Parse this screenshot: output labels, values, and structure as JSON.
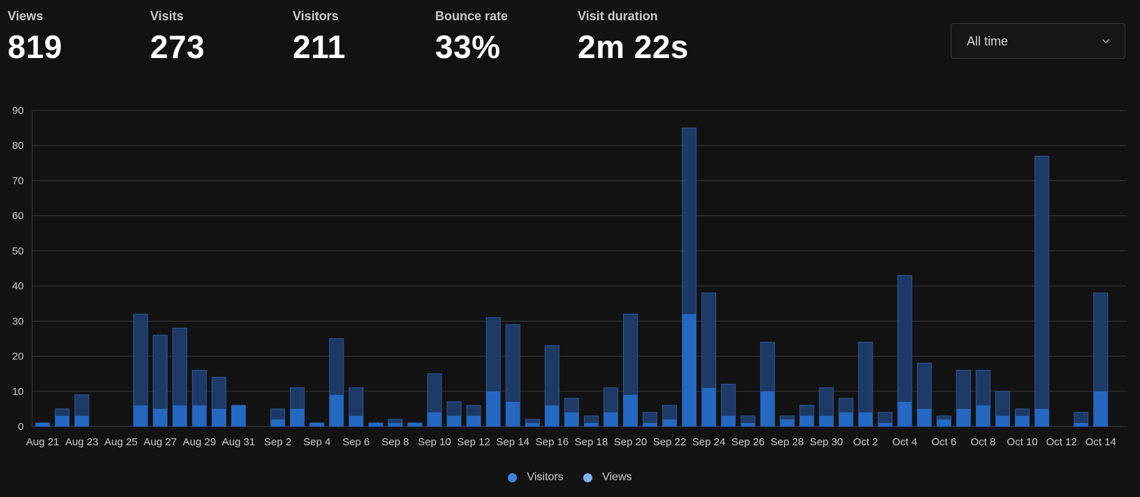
{
  "metrics": [
    {
      "label": "Views",
      "value": "819"
    },
    {
      "label": "Visits",
      "value": "273"
    },
    {
      "label": "Visitors",
      "value": "211"
    },
    {
      "label": "Bounce rate",
      "value": "33%"
    },
    {
      "label": "Visit duration",
      "value": "2m 22s"
    }
  ],
  "date_range": {
    "selected": "All time"
  },
  "colors": {
    "background": "#121212",
    "views_bar": "#1d3a66",
    "views_border": "#2c5aa0",
    "visitors_bar": "#2468c2",
    "legend_visitors": "#3d80e0",
    "legend_views": "#7fb0f0",
    "grid": "#3a3a3a"
  },
  "chart_data": {
    "type": "bar",
    "stacked_overlay": true,
    "x": [
      "Aug 21",
      "Aug 22",
      "Aug 23",
      "Aug 24",
      "Aug 25",
      "Aug 26",
      "Aug 27",
      "Aug 28",
      "Aug 29",
      "Aug 30",
      "Aug 31",
      "Sep 1",
      "Sep 2",
      "Sep 3",
      "Sep 4",
      "Sep 5",
      "Sep 6",
      "Sep 7",
      "Sep 8",
      "Sep 9",
      "Sep 10",
      "Sep 11",
      "Sep 12",
      "Sep 13",
      "Sep 14",
      "Sep 15",
      "Sep 16",
      "Sep 17",
      "Sep 18",
      "Sep 19",
      "Sep 20",
      "Sep 21",
      "Sep 22",
      "Sep 23",
      "Sep 24",
      "Sep 25",
      "Sep 26",
      "Sep 27",
      "Sep 28",
      "Sep 29",
      "Sep 30",
      "Oct 1",
      "Oct 2",
      "Oct 3",
      "Oct 4",
      "Oct 5",
      "Oct 6",
      "Oct 7",
      "Oct 8",
      "Oct 9",
      "Oct 10",
      "Oct 11",
      "Oct 12",
      "Oct 13",
      "Oct 14"
    ],
    "tick_labels": [
      "Aug 21",
      "Aug 23",
      "Aug 25",
      "Aug 27",
      "Aug 29",
      "Aug 31",
      "Sep 2",
      "Sep 4",
      "Sep 6",
      "Sep 8",
      "Sep 10",
      "Sep 12",
      "Sep 14",
      "Sep 16",
      "Sep 18",
      "Sep 20",
      "Sep 22",
      "Sep 24",
      "Sep 26",
      "Sep 28",
      "Sep 30",
      "Oct 2",
      "Oct 4",
      "Oct 6",
      "Oct 8",
      "Oct 10",
      "Oct 12",
      "Oct 14"
    ],
    "series": [
      {
        "name": "Visitors",
        "values": [
          1,
          3,
          3,
          0,
          0,
          6,
          5,
          6,
          6,
          5,
          6,
          0,
          2,
          5,
          1,
          9,
          3,
          1,
          1,
          1,
          4,
          3,
          3,
          10,
          7,
          1,
          6,
          4,
          1,
          4,
          9,
          1,
          2,
          32,
          11,
          3,
          1,
          10,
          2,
          3,
          3,
          4,
          4,
          1,
          7,
          5,
          2,
          5,
          6,
          3,
          3,
          5,
          0,
          1,
          10
        ]
      },
      {
        "name": "Views",
        "values": [
          1,
          5,
          9,
          0,
          0,
          32,
          26,
          28,
          16,
          14,
          6,
          0,
          5,
          11,
          1,
          25,
          11,
          1,
          2,
          1,
          15,
          7,
          6,
          31,
          29,
          2,
          23,
          8,
          3,
          11,
          32,
          4,
          6,
          85,
          38,
          12,
          3,
          24,
          3,
          6,
          11,
          8,
          24,
          4,
          43,
          18,
          3,
          16,
          16,
          10,
          5,
          77,
          0,
          4,
          38
        ]
      }
    ],
    "ylim": [
      0,
      90
    ],
    "yticks": [
      0,
      10,
      20,
      30,
      40,
      50,
      60,
      70,
      80,
      90
    ],
    "grid": true,
    "legend": "bottom-center"
  }
}
